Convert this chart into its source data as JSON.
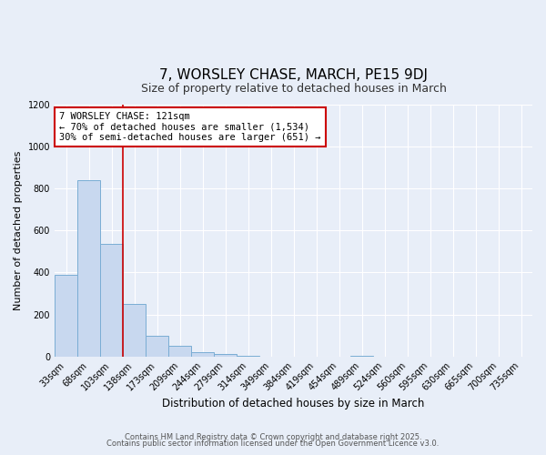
{
  "title": "7, WORSLEY CHASE, MARCH, PE15 9DJ",
  "subtitle": "Size of property relative to detached houses in March",
  "xlabel": "Distribution of detached houses by size in March",
  "ylabel": "Number of detached properties",
  "bar_labels": [
    "33sqm",
    "68sqm",
    "103sqm",
    "138sqm",
    "173sqm",
    "209sqm",
    "244sqm",
    "279sqm",
    "314sqm",
    "349sqm",
    "384sqm",
    "419sqm",
    "454sqm",
    "489sqm",
    "524sqm",
    "560sqm",
    "595sqm",
    "630sqm",
    "665sqm",
    "700sqm",
    "735sqm"
  ],
  "bar_values": [
    390,
    840,
    535,
    248,
    97,
    52,
    20,
    12,
    5,
    0,
    0,
    0,
    0,
    4,
    0,
    0,
    0,
    0,
    0,
    0,
    0
  ],
  "bar_color": "#c8d8ef",
  "bar_edge_color": "#7aadd4",
  "ylim": [
    0,
    1200
  ],
  "yticks": [
    0,
    200,
    400,
    600,
    800,
    1000,
    1200
  ],
  "vline_x": 2.5,
  "vline_color": "#cc0000",
  "annotation_line1": "7 WORSLEY CHASE: 121sqm",
  "annotation_line2": "← 70% of detached houses are smaller (1,534)",
  "annotation_line3": "30% of semi-detached houses are larger (651) →",
  "annotation_box_color": "#ffffff",
  "annotation_box_edge": "#cc0000",
  "footer1": "Contains HM Land Registry data © Crown copyright and database right 2025.",
  "footer2": "Contains public sector information licensed under the Open Government Licence v3.0.",
  "bg_color": "#e8eef8",
  "plot_bg_color": "#e8eef8",
  "grid_color": "#ffffff",
  "title_fontsize": 11,
  "subtitle_fontsize": 9,
  "figsize": [
    6.0,
    5.0
  ],
  "dpi": 100
}
